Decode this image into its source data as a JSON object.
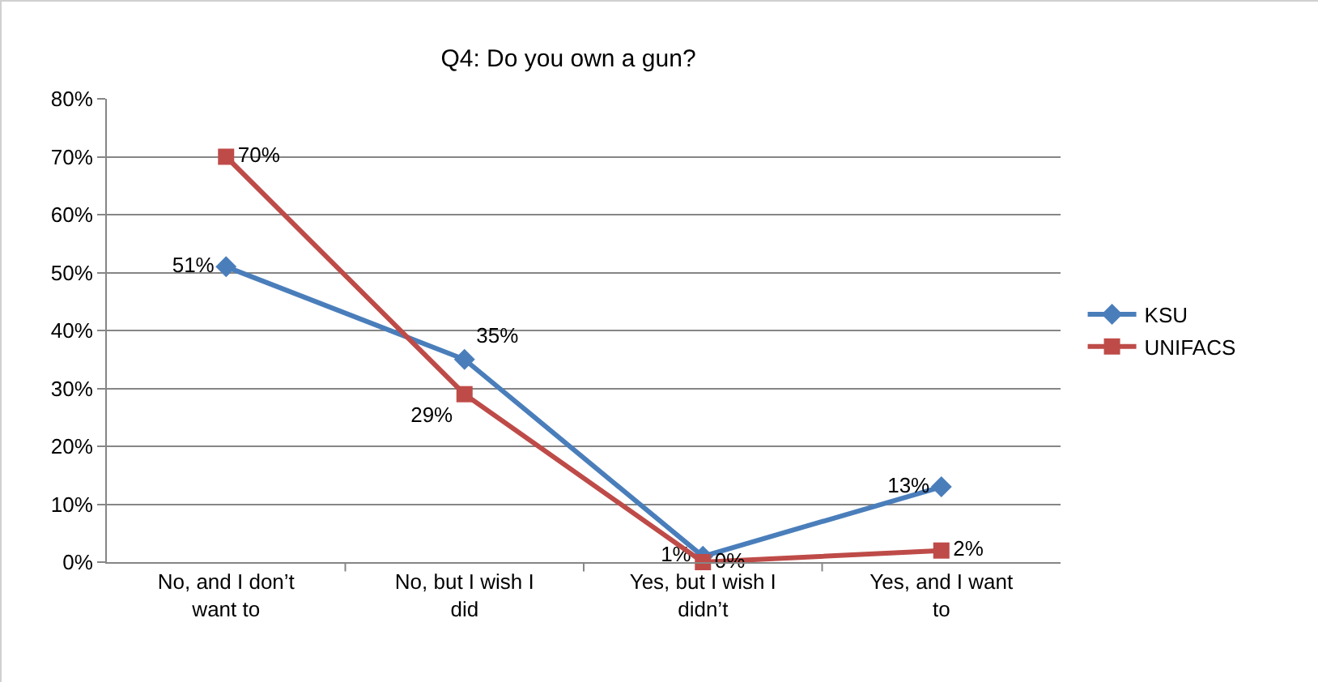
{
  "chart_data": {
    "type": "line",
    "title": "Q4: Do you own a gun?",
    "categories": [
      "No, and I don’t want to",
      "No, but I wish I did",
      "Yes, but I wish I didn’t",
      "Yes, and I want to"
    ],
    "series": [
      {
        "name": "KSU",
        "color": "#4a7ebb",
        "marker": "diamond",
        "values": [
          51,
          35,
          1,
          13
        ],
        "value_labels": [
          "51%",
          "35%",
          "1%",
          "13%"
        ]
      },
      {
        "name": "UNIFACS",
        "color": "#be4b48",
        "marker": "square",
        "values": [
          70,
          29,
          0,
          2
        ],
        "value_labels": [
          "70%",
          "29%",
          "0%",
          "2%"
        ]
      }
    ],
    "ylim": [
      0,
      80
    ],
    "yticks": [
      {
        "value": 0,
        "label": "0%"
      },
      {
        "value": 10,
        "label": "10%"
      },
      {
        "value": 20,
        "label": "20%"
      },
      {
        "value": 30,
        "label": "30%"
      },
      {
        "value": 40,
        "label": "40%"
      },
      {
        "value": 50,
        "label": "50%"
      },
      {
        "value": 60,
        "label": "60%"
      },
      {
        "value": 70,
        "label": "70%"
      },
      {
        "value": 80,
        "label": "80%"
      }
    ],
    "grid": "y",
    "legend": "right",
    "line_style": "solid"
  }
}
